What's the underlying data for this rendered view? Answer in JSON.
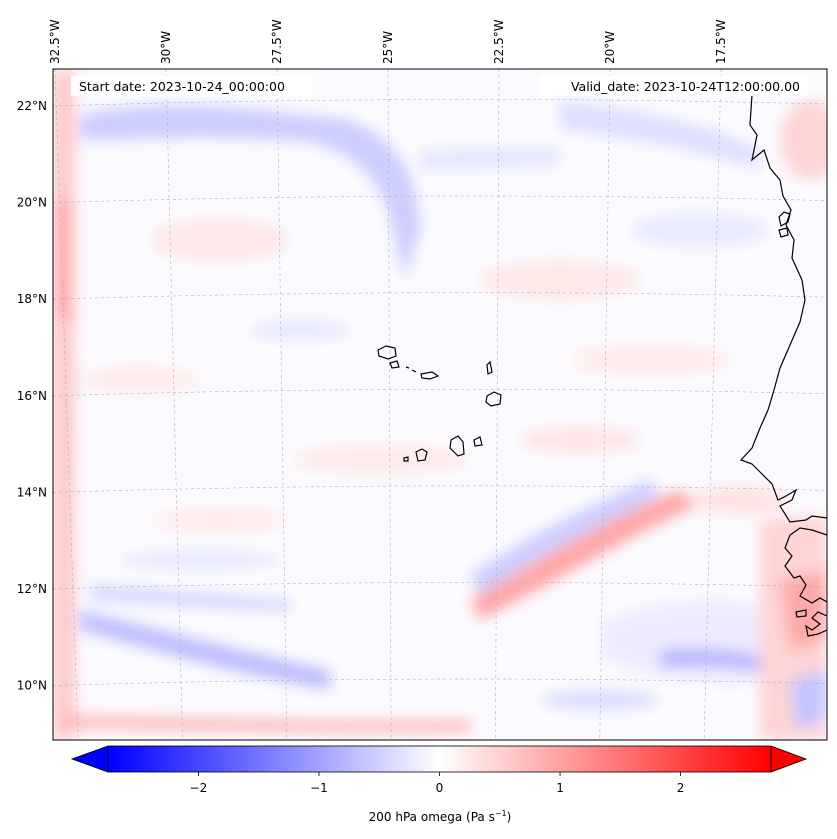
{
  "map": {
    "start_date_label": "Start date: 2023-10-24_00:00:00",
    "valid_date_label": "Valid_date: 2023-10-24T12:00:00.00",
    "lon_ticks": [
      {
        "value": -32.5,
        "label": "32.5°W"
      },
      {
        "value": -30.0,
        "label": "30°W"
      },
      {
        "value": -27.5,
        "label": "27.5°W"
      },
      {
        "value": -25.0,
        "label": "25°W"
      },
      {
        "value": -22.5,
        "label": "22.5°W"
      },
      {
        "value": -20.0,
        "label": "20°W"
      },
      {
        "value": -17.5,
        "label": "17.5°W"
      }
    ],
    "lat_ticks": [
      {
        "value": 22,
        "label": "22°N"
      },
      {
        "value": 20,
        "label": "20°N"
      },
      {
        "value": 18,
        "label": "18°N"
      },
      {
        "value": 16,
        "label": "16°N"
      },
      {
        "value": 14,
        "label": "14°N"
      },
      {
        "value": 12,
        "label": "12°N"
      },
      {
        "value": 10,
        "label": "10°N"
      }
    ],
    "grid": true,
    "colors": {
      "negative": "#0000ff",
      "neutral": "#ffffff",
      "positive": "#ff0000",
      "coast": "#000000",
      "grid": "#b0b0b0"
    }
  },
  "colorbar": {
    "label_main": "200 hPa omega (Pa s",
    "label_exp": "−1",
    "label_close": ")",
    "min": -2.75,
    "max": 2.75,
    "extend": "both",
    "ticks": [
      {
        "value": -2,
        "label": "−2"
      },
      {
        "value": -1,
        "label": "−1"
      },
      {
        "value": 0,
        "label": "0"
      },
      {
        "value": 1,
        "label": "1"
      },
      {
        "value": 2,
        "label": "2"
      }
    ]
  }
}
